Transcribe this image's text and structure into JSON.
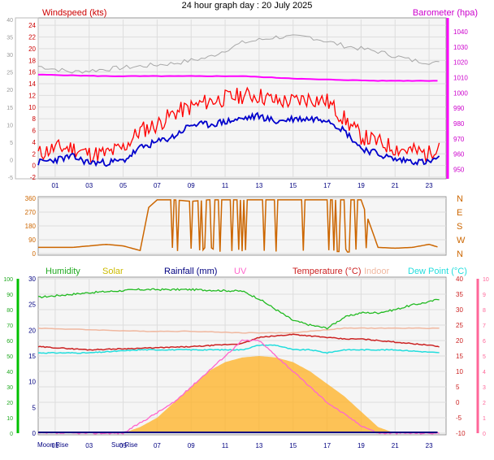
{
  "title": "24 hour graph day : 20 July 2025",
  "colors": {
    "wind_avg": "#0000cc",
    "wind_gust": "#ff0000",
    "barometer": "#ff00ff",
    "gray_trace": "#a8a8a8",
    "wind_dir": "#cc6600",
    "humidity": "#22bb22",
    "solar": "#ffb020",
    "rainfall": "#000080",
    "uv": "#ff66cc",
    "temperature": "#cc2222",
    "indoor": "#f0b8a0",
    "dew_point": "#22dddd",
    "axis_green": "#00c000",
    "axis_pink": "#ff6699"
  },
  "chart_data": [
    {
      "type": "line",
      "labels": {
        "left": "Windspeed (kts)",
        "right": "Barometer (hpa)"
      },
      "x_ticks": [
        "01",
        "03",
        "05",
        "07",
        "09",
        "11",
        "13",
        "15",
        "17",
        "19",
        "21",
        "23"
      ],
      "y_left_outer_ticks": [
        -5,
        0,
        5,
        10,
        15,
        20,
        25,
        30,
        35,
        40
      ],
      "y_left_inner_ticks": [
        -2,
        0,
        2,
        4,
        6,
        8,
        10,
        12,
        14,
        16,
        18,
        20,
        22,
        24
      ],
      "y_right_ticks": [
        950,
        960,
        970,
        980,
        990,
        1000,
        1010,
        1020,
        1030,
        1040
      ],
      "ylim_left": [
        -2,
        25
      ],
      "ylim_right": [
        945,
        1048
      ],
      "x_range": [
        0,
        24
      ],
      "series": [
        {
          "name": "Windspeed (kts)",
          "x": [
            0,
            1,
            2,
            3,
            4,
            5,
            6,
            7,
            8,
            9,
            10,
            11,
            12,
            13,
            14,
            15,
            16,
            17,
            18,
            19,
            20,
            21,
            22,
            23,
            23.6
          ],
          "values": [
            0.5,
            1,
            1.5,
            0.5,
            0.5,
            0.8,
            3,
            4,
            5,
            7,
            7,
            7.5,
            8,
            8.5,
            7.5,
            8,
            8,
            8,
            6,
            3,
            2,
            1,
            0.8,
            0.5,
            1.5
          ]
        },
        {
          "name": "Gust",
          "x": [
            0,
            1,
            2,
            3,
            4,
            5,
            6,
            7,
            8,
            9,
            10,
            11,
            12,
            13,
            14,
            15,
            16,
            17,
            18,
            19,
            20,
            21,
            22,
            23,
            23.6
          ],
          "values": [
            2,
            3,
            3,
            2,
            2,
            3,
            6,
            7,
            9,
            10,
            11,
            11.5,
            12,
            12,
            11,
            11,
            11.5,
            11,
            8,
            5,
            4,
            3,
            2.5,
            2,
            4
          ]
        },
        {
          "name": "Barometer (hpa)",
          "x": [
            0,
            4,
            8,
            12,
            16,
            20,
            23.6
          ],
          "values": [
            1012,
            1011,
            1011,
            1011,
            1009,
            1008,
            1008
          ]
        }
      ]
    },
    {
      "type": "scatter",
      "y_left_ticks": [
        0,
        90,
        180,
        270,
        360
      ],
      "y_right_labels": [
        "N",
        "W",
        "S",
        "E",
        "N"
      ],
      "ylim": [
        0,
        360
      ],
      "series": [
        {
          "name": "Wind direction",
          "x": [
            0,
            2,
            4,
            5,
            6,
            6.5,
            7,
            8,
            9,
            10,
            11,
            12,
            13,
            14,
            15,
            16,
            17,
            18,
            19,
            20,
            21,
            22,
            23,
            23.6
          ],
          "values": [
            40,
            40,
            60,
            50,
            20,
            300,
            350,
            350,
            340,
            350,
            350,
            350,
            350,
            350,
            350,
            350,
            350,
            350,
            350,
            40,
            35,
            40,
            60,
            40
          ]
        }
      ]
    },
    {
      "type": "area",
      "legend": [
        "Humidity",
        "Solar",
        "Rainfall (mm)",
        "UV",
        "Temperature (°C)",
        "Indoor",
        "Dew Point (°C)"
      ],
      "x_ticks": [
        "01",
        "03",
        "05",
        "07",
        "09",
        "11",
        "13",
        "15",
        "17",
        "19",
        "21",
        "23"
      ],
      "events": [
        {
          "label": "Moon Rise",
          "x": 0.5
        },
        {
          "label": "Sun Rise",
          "x": 5.3
        }
      ],
      "y_humidity_ticks": [
        0,
        10,
        20,
        30,
        40,
        50,
        60,
        70,
        80,
        90,
        100
      ],
      "y_rain_ticks": [
        0,
        5,
        10,
        15,
        20,
        25,
        30
      ],
      "y_temp_ticks": [
        -10,
        -5,
        0,
        5,
        10,
        15,
        20,
        25,
        30,
        35,
        40
      ],
      "y_uv_ticks": [
        0,
        1,
        2,
        3,
        4,
        5,
        6,
        7,
        8,
        9,
        10
      ],
      "ylim_temp": [
        -10,
        40
      ],
      "series": [
        {
          "name": "Humidity",
          "x": [
            0,
            3,
            6,
            9,
            12,
            13,
            14,
            15,
            16,
            17,
            18,
            19,
            20,
            21,
            22,
            23,
            23.6
          ],
          "values": [
            88,
            91,
            93,
            93,
            92,
            87,
            80,
            73,
            70,
            68,
            75,
            78,
            78,
            80,
            83,
            85,
            87
          ]
        },
        {
          "name": "Temperature (°C)",
          "x": [
            0,
            3,
            6,
            9,
            12,
            13,
            14,
            15,
            16,
            17,
            18,
            19,
            20,
            21,
            22,
            23,
            23.6
          ],
          "values": [
            18,
            17,
            17.5,
            18,
            19,
            21,
            21.5,
            22,
            21.5,
            21,
            20.5,
            20.5,
            20,
            19.5,
            19,
            18.5,
            18
          ]
        },
        {
          "name": "Indoor",
          "x": [
            0,
            3,
            6,
            9,
            12,
            15,
            18,
            21,
            23.6
          ],
          "values": [
            24,
            23.5,
            23,
            23,
            22.5,
            22.5,
            24,
            24,
            24
          ]
        },
        {
          "name": "Dew Point (°C)",
          "x": [
            0,
            3,
            6,
            9,
            12,
            13,
            14,
            15,
            16,
            17,
            18,
            21,
            23.6
          ],
          "values": [
            16,
            16,
            17,
            17,
            17,
            18.5,
            18.5,
            17,
            17,
            16,
            17,
            17,
            16
          ]
        },
        {
          "name": "UV",
          "x": [
            0,
            5,
            8,
            10,
            11,
            12,
            13,
            14,
            15,
            17,
            19,
            20,
            23.6
          ],
          "values": [
            0,
            0,
            2,
            4,
            5,
            6,
            6,
            5,
            4,
            2,
            0.5,
            0,
            0
          ]
        },
        {
          "name": "Solar",
          "x": [
            5,
            6,
            7,
            8,
            9,
            10,
            11,
            12,
            13,
            14,
            15,
            16,
            17,
            18,
            19,
            20,
            21
          ],
          "values": [
            -10,
            -8,
            -5,
            0,
            5,
            10,
            13,
            14.5,
            15,
            14.5,
            13,
            10,
            6,
            2,
            -3,
            -8,
            -10
          ]
        },
        {
          "name": "Rainfall (mm)",
          "x": [
            0,
            23.6
          ],
          "values": [
            0,
            0
          ]
        }
      ]
    }
  ]
}
